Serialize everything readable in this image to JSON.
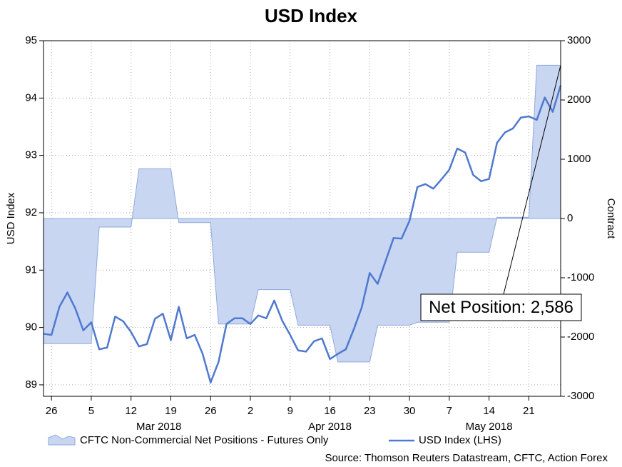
{
  "chart_data": {
    "type": "line",
    "title": "USD Index",
    "ylabel": "USD Index",
    "y2label": "Contract",
    "source": "Source: Thomson Reuters Datastream, CFTC, Action Forex",
    "x": [
      "2018-02-23",
      "2018-02-26",
      "2018-02-27",
      "2018-02-28",
      "2018-03-01",
      "2018-03-02",
      "2018-03-05",
      "2018-03-06",
      "2018-03-07",
      "2018-03-08",
      "2018-03-09",
      "2018-03-12",
      "2018-03-13",
      "2018-03-14",
      "2018-03-15",
      "2018-03-16",
      "2018-03-19",
      "2018-03-20",
      "2018-03-21",
      "2018-03-22",
      "2018-03-23",
      "2018-03-26",
      "2018-03-27",
      "2018-03-28",
      "2018-03-29",
      "2018-03-30",
      "2018-04-02",
      "2018-04-03",
      "2018-04-04",
      "2018-04-05",
      "2018-04-06",
      "2018-04-09",
      "2018-04-10",
      "2018-04-11",
      "2018-04-12",
      "2018-04-13",
      "2018-04-16",
      "2018-04-17",
      "2018-04-18",
      "2018-04-19",
      "2018-04-20",
      "2018-04-23",
      "2018-04-24",
      "2018-04-25",
      "2018-04-26",
      "2018-04-27",
      "2018-04-30",
      "2018-05-01",
      "2018-05-02",
      "2018-05-03",
      "2018-05-04",
      "2018-05-07",
      "2018-05-08",
      "2018-05-09",
      "2018-05-10",
      "2018-05-11",
      "2018-05-14",
      "2018-05-15",
      "2018-05-16",
      "2018-05-17",
      "2018-05-18",
      "2018-05-21",
      "2018-05-22",
      "2018-05-23",
      "2018-05-24",
      "2018-05-25"
    ],
    "series": [
      {
        "name": "CFTC Non-Commercial Net Positions - Futures Only",
        "axis": "y2",
        "kind": "area",
        "color": "#8fa8dc",
        "fill": "#c8d6f2",
        "values": [
          -2110,
          -2110,
          -2110,
          -2110,
          -2110,
          -2110,
          -2110,
          -145,
          -145,
          -145,
          -145,
          -145,
          840,
          840,
          840,
          840,
          840,
          -70,
          -70,
          -70,
          -70,
          -70,
          -1780,
          -1780,
          -1780,
          -1780,
          -1780,
          -1200,
          -1200,
          -1200,
          -1200,
          -1200,
          -1800,
          -1800,
          -1800,
          -1800,
          -1800,
          -2420,
          -2420,
          -2420,
          -2420,
          -2420,
          -1800,
          -1800,
          -1800,
          -1800,
          -1800,
          -1750,
          -1750,
          -1750,
          -1750,
          -1750,
          -570,
          -570,
          -570,
          -570,
          -570,
          20,
          20,
          20,
          20,
          20,
          2586,
          2586,
          2586,
          2586
        ]
      },
      {
        "name": "USD Index (LHS)",
        "kind": "line",
        "color": "#4f79cf",
        "values": [
          89.89,
          89.87,
          90.36,
          90.61,
          90.33,
          89.95,
          90.09,
          89.62,
          89.65,
          90.19,
          90.11,
          89.92,
          89.67,
          89.71,
          90.15,
          90.24,
          89.78,
          90.36,
          89.81,
          89.87,
          89.54,
          89.04,
          89.4,
          90.06,
          90.16,
          90.16,
          90.06,
          90.21,
          90.16,
          90.47,
          90.12,
          89.87,
          89.6,
          89.58,
          89.76,
          89.81,
          89.45,
          89.54,
          89.62,
          89.97,
          90.35,
          90.95,
          90.76,
          91.16,
          91.56,
          91.55,
          91.86,
          92.45,
          92.5,
          92.42,
          92.58,
          92.75,
          93.12,
          93.05,
          92.66,
          92.55,
          92.59,
          93.22,
          93.4,
          93.47,
          93.66,
          93.68,
          93.62,
          94.01,
          93.76,
          94.22
        ]
      }
    ],
    "annotation": {
      "text": "Net Position: 2,586",
      "series": 0
    },
    "xlim": [
      "2018-02-23",
      "2018-05-25"
    ],
    "xticks": [
      {
        "value": "2018-02-26",
        "label": "26"
      },
      {
        "value": "2018-03-05",
        "label": "5"
      },
      {
        "value": "2018-03-12",
        "label": "12"
      },
      {
        "value": "2018-03-19",
        "label": "19"
      },
      {
        "value": "2018-03-26",
        "label": "26"
      },
      {
        "value": "2018-04-02",
        "label": "2"
      },
      {
        "value": "2018-04-09",
        "label": "9"
      },
      {
        "value": "2018-04-16",
        "label": "16"
      },
      {
        "value": "2018-04-23",
        "label": "23"
      },
      {
        "value": "2018-04-30",
        "label": "30"
      },
      {
        "value": "2018-05-07",
        "label": "7"
      },
      {
        "value": "2018-05-14",
        "label": "14"
      },
      {
        "value": "2018-05-21",
        "label": "21"
      }
    ],
    "xmonths": [
      {
        "value": "2018-03",
        "label": "Mar 2018"
      },
      {
        "value": "2018-04",
        "label": "Apr 2018"
      },
      {
        "value": "2018-05",
        "label": "May 2018"
      }
    ],
    "ylim": [
      88.8,
      95
    ],
    "yticks": [
      89,
      90,
      91,
      92,
      93,
      94,
      95
    ],
    "y2lim": [
      -3000,
      3000
    ],
    "y2ticks": [
      -3000,
      -2000,
      -1000,
      0,
      1000,
      2000,
      3000
    ],
    "grid": true
  }
}
